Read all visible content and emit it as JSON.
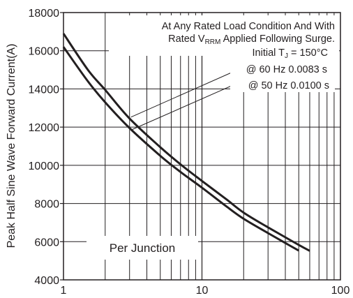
{
  "chart_data": {
    "type": "line",
    "x_scale": "log",
    "xlim": [
      1,
      100
    ],
    "ylim": [
      4000,
      18000
    ],
    "grid": true,
    "ylabel": "Peak Half Sine Wave Forward Current(A)",
    "x_ticks": [
      "1",
      "10",
      "100"
    ],
    "y_ticks": [
      "4000",
      "6000",
      "8000",
      "10000",
      "12000",
      "14000",
      "16000",
      "18000"
    ],
    "annotations": {
      "line1": "At Any Rated  Load Condition And With",
      "line2_pre": "Rated V",
      "line2_sub": "RRM",
      "line2_post": " Applied Following Surge.",
      "line3_pre": "Initial T",
      "line3_sub": "J",
      "line3_post": " = 150°C",
      "label_60hz": "@ 60 Hz 0.0083 s",
      "label_50hz": "@ 50 Hz 0.0100 s",
      "box_label": "Per Junction"
    },
    "series": [
      {
        "name": "@ 60 Hz 0.0083 s",
        "x": [
          1,
          1.5,
          2,
          3,
          5,
          7,
          10,
          15,
          20,
          30,
          40,
          50
        ],
        "y": [
          16200,
          14400,
          13300,
          11950,
          10500,
          9650,
          8830,
          7850,
          7200,
          6450,
          5930,
          5530
        ]
      },
      {
        "name": "@ 50 Hz 0.0100 s",
        "x": [
          1,
          1.5,
          2,
          3,
          5,
          7,
          10,
          15,
          20,
          30,
          40,
          50,
          60
        ],
        "y": [
          16900,
          15000,
          13950,
          12450,
          10950,
          10050,
          9180,
          8220,
          7520,
          6750,
          6230,
          5830,
          5520
        ]
      }
    ]
  }
}
